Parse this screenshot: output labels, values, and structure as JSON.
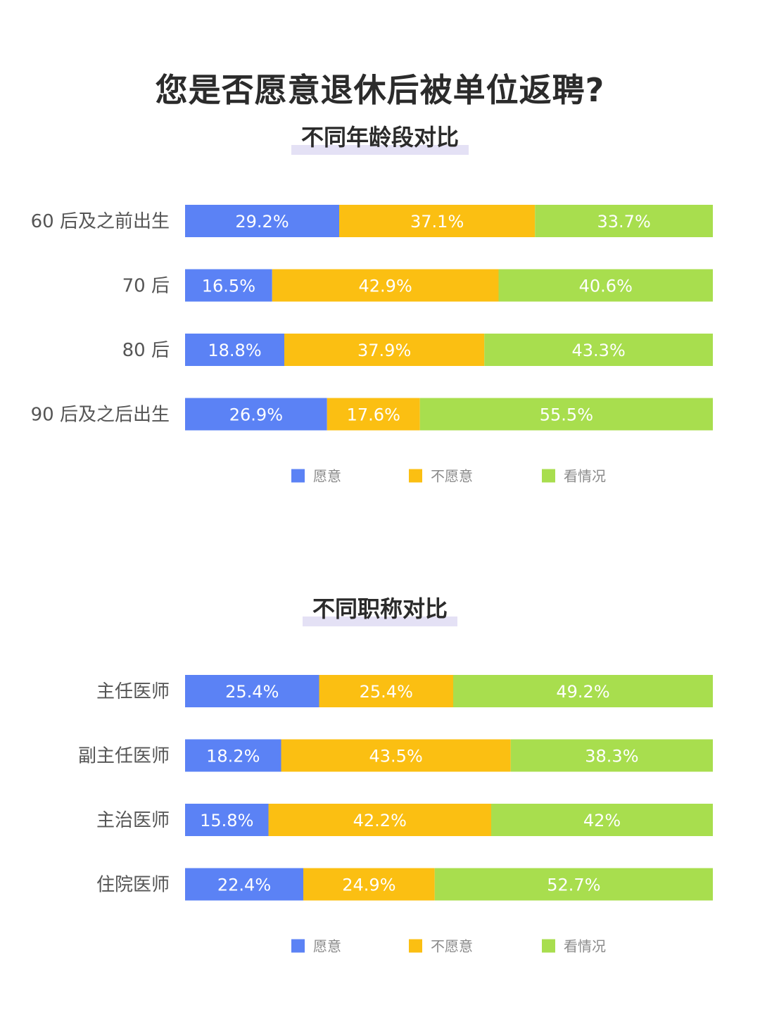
{
  "title": "您是否愿意退休后被单位返聘?",
  "colors": {
    "yes": "#5b82f5",
    "no": "#fbbf12",
    "depends": "#a8de4e"
  },
  "chart_data": [
    {
      "type": "bar",
      "orientation": "horizontal-stacked-100",
      "title": "不同年龄段对比",
      "categories": [
        "60 后及之前出生",
        "70 后",
        "80 后",
        "90 后及之后出生"
      ],
      "series": [
        {
          "name": "愿意",
          "values": [
            29.2,
            16.5,
            18.8,
            26.9
          ],
          "labels": [
            "29.2%",
            "16.5%",
            "18.8%",
            "26.9%"
          ]
        },
        {
          "name": "不愿意",
          "values": [
            37.1,
            42.9,
            37.9,
            17.6
          ],
          "labels": [
            "37.1%",
            "42.9%",
            "37.9%",
            "17.6%"
          ]
        },
        {
          "name": "看情况",
          "values": [
            33.7,
            40.6,
            43.3,
            55.5
          ],
          "labels": [
            "33.7%",
            "40.6%",
            "43.3%",
            "55.5%"
          ]
        }
      ],
      "xlim": [
        0,
        100
      ],
      "legend_position": "bottom",
      "grid": false
    },
    {
      "type": "bar",
      "orientation": "horizontal-stacked-100",
      "title": "不同职称对比",
      "categories": [
        "主任医师",
        "副主任医师",
        "主治医师",
        "住院医师"
      ],
      "series": [
        {
          "name": "愿意",
          "values": [
            25.4,
            18.2,
            15.8,
            22.4
          ],
          "labels": [
            "25.4%",
            "18.2%",
            "15.8%",
            "22.4%"
          ]
        },
        {
          "name": "不愿意",
          "values": [
            25.4,
            43.5,
            42.2,
            24.9
          ],
          "labels": [
            "25.4%",
            "43.5%",
            "42.2%",
            "24.9%"
          ]
        },
        {
          "name": "看情况",
          "values": [
            49.2,
            38.3,
            42,
            52.7
          ],
          "labels": [
            "49.2%",
            "38.3%",
            "42%",
            "52.7%"
          ]
        }
      ],
      "xlim": [
        0,
        100
      ],
      "legend_position": "bottom",
      "grid": false
    }
  ]
}
